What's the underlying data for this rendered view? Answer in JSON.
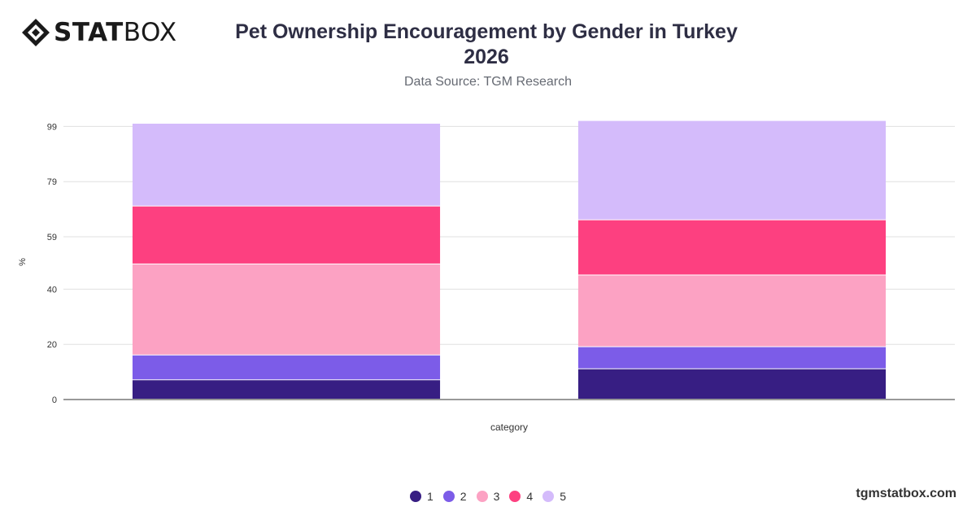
{
  "brand": {
    "logo_bold": "STAT",
    "logo_light": "BOX",
    "footer": "tgmstatbox.com"
  },
  "chart_data": {
    "type": "bar",
    "stacked": true,
    "title": "Pet Ownership Encouragement by Gender in Turkey",
    "title_line2": "2026",
    "subtitle": "Data Source: TGM Research",
    "xlabel": "category",
    "ylabel": "%",
    "yticks": [
      0,
      20,
      40,
      59,
      79,
      99
    ],
    "ylim": [
      0,
      100
    ],
    "grid": true,
    "legend_position": "bottom",
    "categories": [
      "",
      ""
    ],
    "series": [
      {
        "name": "1",
        "color": "#371e83",
        "values": [
          7,
          11
        ]
      },
      {
        "name": "2",
        "color": "#7c5ce8",
        "values": [
          9,
          8
        ]
      },
      {
        "name": "3",
        "color": "#fca2c3",
        "values": [
          33,
          26
        ]
      },
      {
        "name": "4",
        "color": "#fd4080",
        "values": [
          21,
          20
        ]
      },
      {
        "name": "5",
        "color": "#d4bbfb",
        "values": [
          30,
          36
        ]
      }
    ]
  }
}
